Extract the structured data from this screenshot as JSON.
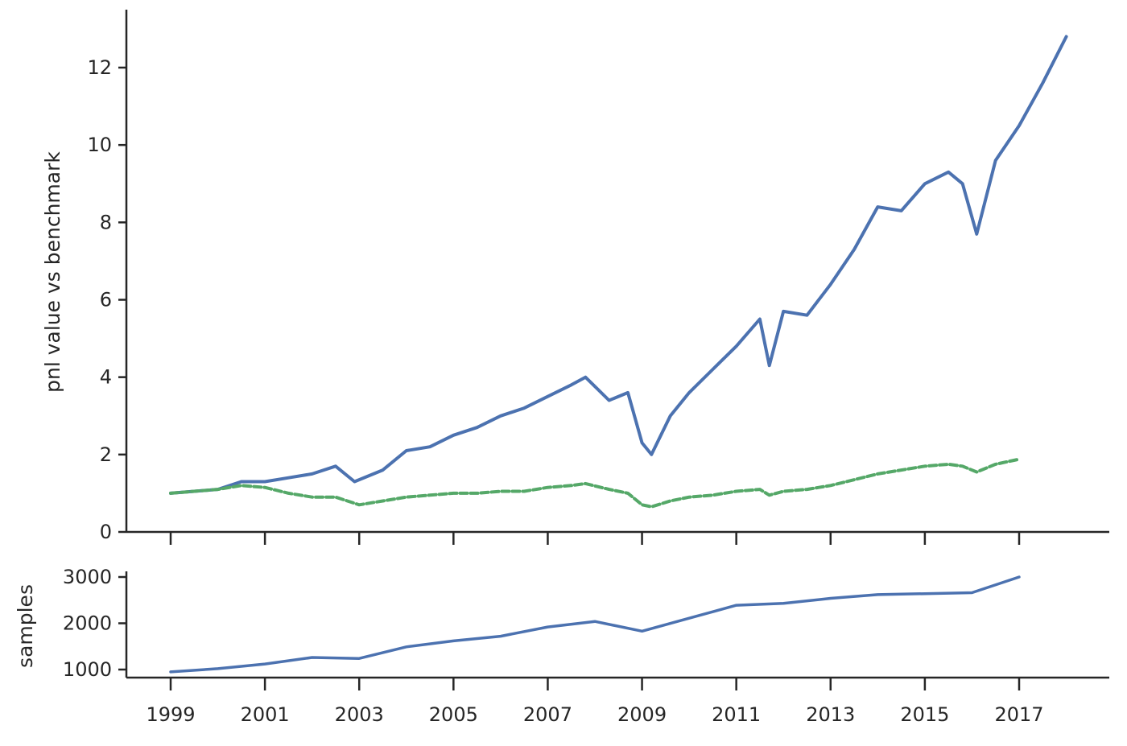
{
  "chart_data": [
    {
      "type": "line",
      "ylabel": "pnl value vs benchmark",
      "xlabel": "",
      "ylim": [
        0,
        13
      ],
      "yticks": [
        "0",
        "2",
        "4",
        "6",
        "8",
        "10",
        "12"
      ],
      "series": [
        {
          "color": "#4c72b0",
          "style": "solid",
          "x": [
            1999.0,
            1999.5,
            2000.0,
            2000.5,
            2001.0,
            2001.5,
            2002.0,
            2002.5,
            2002.9,
            2003.5,
            2004.0,
            2004.5,
            2005.0,
            2005.5,
            2006.0,
            2006.5,
            2007.0,
            2007.5,
            2007.8,
            2008.3,
            2008.7,
            2009.0,
            2009.2,
            2009.6,
            2010.0,
            2010.5,
            2011.0,
            2011.5,
            2011.7,
            2012.0,
            2012.5,
            2013.0,
            2013.5,
            2014.0,
            2014.5,
            2015.0,
            2015.5,
            2015.8,
            2016.1,
            2016.5,
            2017.0,
            2017.5,
            2018.0
          ],
          "y": [
            1.0,
            1.05,
            1.1,
            1.3,
            1.3,
            1.4,
            1.5,
            1.7,
            1.3,
            1.6,
            2.1,
            2.2,
            2.5,
            2.7,
            3.0,
            3.2,
            3.5,
            3.8,
            4.0,
            3.4,
            3.6,
            2.3,
            2.0,
            3.0,
            3.6,
            4.2,
            4.8,
            5.5,
            4.3,
            5.7,
            5.6,
            6.4,
            7.3,
            8.4,
            8.3,
            9.0,
            9.3,
            9.0,
            7.7,
            9.6,
            10.5,
            11.6,
            12.8
          ]
        },
        {
          "color": "#55a868",
          "style": "dashed",
          "x": [
            1999.0,
            1999.5,
            2000.0,
            2000.5,
            2001.0,
            2001.5,
            2002.0,
            2002.5,
            2003.0,
            2003.5,
            2004.0,
            2004.5,
            2005.0,
            2005.5,
            2006.0,
            2006.5,
            2007.0,
            2007.5,
            2007.8,
            2008.3,
            2008.7,
            2009.0,
            2009.2,
            2009.6,
            2010.0,
            2010.5,
            2011.0,
            2011.5,
            2011.7,
            2012.0,
            2012.5,
            2013.0,
            2013.5,
            2014.0,
            2014.5,
            2015.0,
            2015.5,
            2015.8,
            2016.1,
            2016.5,
            2017.0
          ],
          "y": [
            1.0,
            1.05,
            1.1,
            1.2,
            1.15,
            1.0,
            0.9,
            0.9,
            0.7,
            0.8,
            0.9,
            0.95,
            1.0,
            1.0,
            1.05,
            1.05,
            1.15,
            1.2,
            1.25,
            1.1,
            1.0,
            0.7,
            0.65,
            0.8,
            0.9,
            0.95,
            1.05,
            1.1,
            0.95,
            1.05,
            1.1,
            1.2,
            1.35,
            1.5,
            1.6,
            1.7,
            1.75,
            1.7,
            1.55,
            1.75,
            1.88
          ]
        }
      ]
    },
    {
      "type": "line",
      "ylabel": "samples",
      "xlabel": "",
      "ylim": [
        900,
        3150
      ],
      "yticks": [
        "1000",
        "2000",
        "3000"
      ],
      "xticks": [
        "1999",
        "2001",
        "2003",
        "2005",
        "2007",
        "2009",
        "2011",
        "2013",
        "2015",
        "2017"
      ],
      "series": [
        {
          "color": "#4c72b0",
          "style": "solid",
          "x": [
            1999,
            2000,
            2001,
            2002,
            2003,
            2004,
            2005,
            2006,
            2007,
            2008,
            2009,
            2010,
            2011,
            2012,
            2013,
            2014,
            2015,
            2016,
            2017
          ],
          "y": [
            950,
            1020,
            1120,
            1260,
            1240,
            1490,
            1620,
            1720,
            1920,
            2040,
            1830,
            2110,
            2390,
            2430,
            2540,
            2620,
            2640,
            2660,
            3000
          ]
        }
      ]
    }
  ]
}
